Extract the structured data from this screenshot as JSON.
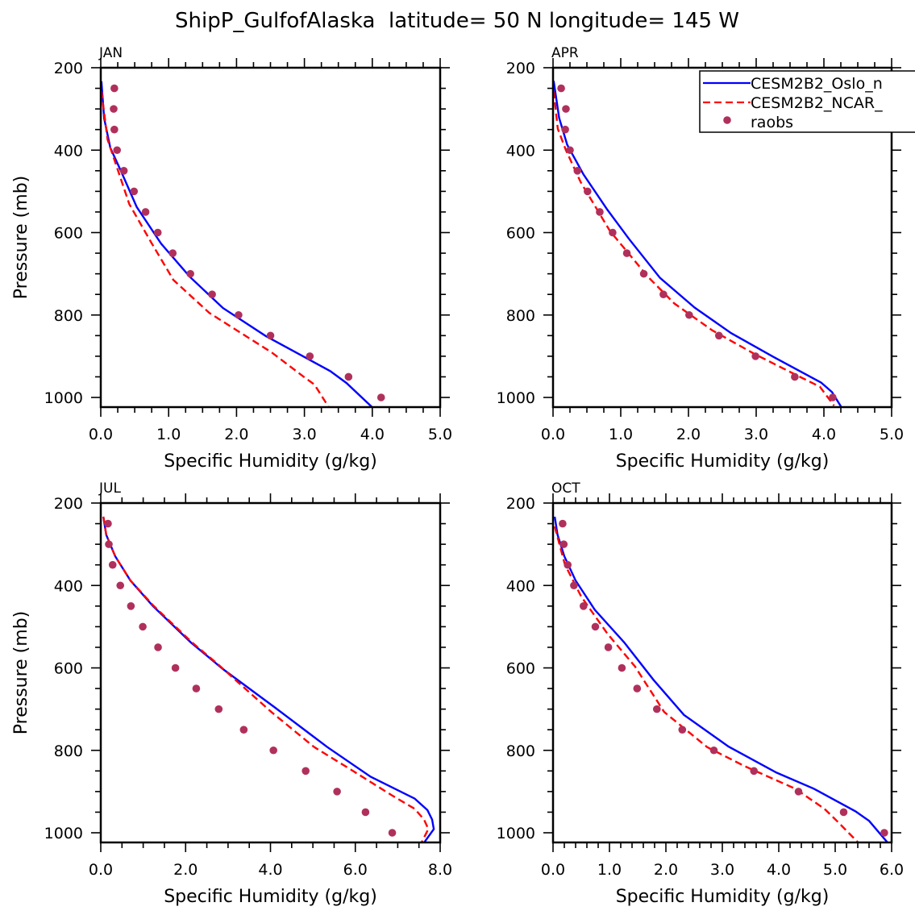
{
  "chart_data": {
    "type": "line",
    "title": "ShipP_GulfofAlaska  latitude= 50 N longitude= 145 W",
    "legend": {
      "placement": "top-right",
      "entries": [
        {
          "label": "CESM2B2_Oslo_n",
          "style": "solid",
          "color": "#0000ff"
        },
        {
          "label": "CESM2B2_NCAR_",
          "style": "dashed",
          "color": "#ff0000"
        },
        {
          "label": "raobs",
          "style": "marker",
          "color": "#b0305c"
        }
      ]
    },
    "panels": [
      {
        "label": "JAN",
        "xlabel": "Specific Humidity (g/kg)",
        "ylabel": "Pressure (mb)",
        "xlim": [
          0,
          5
        ],
        "ylim": [
          200,
          1025
        ],
        "xticks": [
          "0.0",
          "1.0",
          "2.0",
          "3.0",
          "4.0",
          "5.0"
        ],
        "xmajor": 1,
        "xminor": 0.25,
        "yticks": [
          "200",
          "400",
          "600",
          "800",
          "1000"
        ],
        "series": [
          {
            "name": "CESM2B2_Oslo_n",
            "p": [
              233,
              323,
              394,
              452,
              538,
              627,
              707,
              783,
              851,
              936,
              965,
              1024
            ],
            "q": [
              0.01,
              0.05,
              0.14,
              0.3,
              0.53,
              0.89,
              1.31,
              1.8,
              2.43,
              3.38,
              3.62,
              4.0
            ]
          },
          {
            "name": "CESM2B2_NCAR_",
            "p": [
              257,
              374,
              531,
              623,
              715,
              795,
              891,
              950,
              969,
              1024
            ],
            "q": [
              0.01,
              0.1,
              0.42,
              0.74,
              1.07,
              1.6,
              2.52,
              2.99,
              3.15,
              3.36
            ]
          },
          {
            "name": "raobs",
            "p": [
              250,
              300,
              350,
              400,
              450,
              500,
              550,
              600,
              650,
              700,
              750,
              800,
              850,
              900,
              950,
              1000
            ],
            "q": [
              0.2,
              0.19,
              0.2,
              0.24,
              0.34,
              0.49,
              0.66,
              0.84,
              1.06,
              1.32,
              1.64,
              2.03,
              2.5,
              3.08,
              3.65,
              4.13
            ]
          }
        ]
      },
      {
        "label": "APR",
        "xlabel": "Specific Humidity (g/kg)",
        "ylabel": "",
        "xlim": [
          0,
          5
        ],
        "ylim": [
          200,
          1025
        ],
        "xticks": [
          "0.0",
          "1.0",
          "2.0",
          "3.0",
          "4.0",
          "5.0"
        ],
        "xmajor": 1,
        "xminor": 0.25,
        "yticks": [
          "200",
          "400",
          "600",
          "800",
          "1000"
        ],
        "series": [
          {
            "name": "CESM2B2_Oslo_n",
            "p": [
              232,
              322,
              387,
              459,
              544,
              615,
              710,
              782,
              844,
              902,
              964,
              987,
              1024
            ],
            "q": [
              0.01,
              0.09,
              0.21,
              0.45,
              0.8,
              1.12,
              1.58,
              2.09,
              2.63,
              3.26,
              3.96,
              4.12,
              4.26
            ]
          },
          {
            "name": "CESM2B2_NCAR_",
            "p": [
              257,
              348,
              400,
              478,
              596,
              707,
              772,
              837,
              895,
              948,
              974,
              1020
            ],
            "q": [
              0.01,
              0.07,
              0.19,
              0.41,
              0.84,
              1.4,
              1.79,
              2.35,
              2.98,
              3.62,
              3.94,
              4.15
            ]
          },
          {
            "name": "raobs",
            "p": [
              250,
              300,
              350,
              400,
              450,
              500,
              550,
              600,
              650,
              700,
              750,
              800,
              850,
              900,
              950,
              1000
            ],
            "q": [
              0.12,
              0.19,
              0.18,
              0.25,
              0.36,
              0.51,
              0.69,
              0.88,
              1.09,
              1.34,
              1.63,
              2.01,
              2.45,
              2.99,
              3.57,
              4.13
            ]
          }
        ]
      },
      {
        "label": "JUL",
        "xlabel": "Specific Humidity (g/kg)",
        "ylabel": "Pressure (mb)",
        "xlim": [
          0,
          8
        ],
        "ylim": [
          200,
          1025
        ],
        "xticks": [
          "0.0",
          "2.0",
          "4.0",
          "6.0",
          "8.0"
        ],
        "xmajor": 2,
        "xminor": 0.5,
        "yticks": [
          "200",
          "400",
          "600",
          "800",
          "1000"
        ],
        "series": [
          {
            "name": "CESM2B2_Oslo_n",
            "p": [
              233,
              277,
              329,
              388,
              450,
              538,
              603,
              694,
              792,
              864,
              917,
              945,
              968,
              991,
              1024
            ],
            "q": [
              0.06,
              0.13,
              0.34,
              0.7,
              1.23,
              2.12,
              2.88,
              4.08,
              5.34,
              6.36,
              7.4,
              7.7,
              7.81,
              7.85,
              7.62
            ]
          },
          {
            "name": "CESM2B2_NCAR_",
            "p": [
              233,
              277,
              329,
              388,
              450,
              538,
              590,
              707,
              792,
              844,
              909,
              942,
              968,
              991,
              1024
            ],
            "q": [
              0.06,
              0.13,
              0.34,
              0.7,
              1.25,
              2.15,
              2.75,
              4.02,
              5.03,
              5.85,
              6.86,
              7.4,
              7.62,
              7.72,
              7.56
            ]
          },
          {
            "name": "raobs",
            "p": [
              250,
              300,
              350,
              400,
              450,
              500,
              550,
              600,
              650,
              700,
              750,
              800,
              850,
              900,
              950,
              1000
            ],
            "q": [
              0.17,
              0.19,
              0.28,
              0.46,
              0.71,
              0.99,
              1.35,
              1.76,
              2.25,
              2.78,
              3.37,
              4.07,
              4.83,
              5.57,
              6.24,
              6.87
            ]
          }
        ]
      },
      {
        "label": "OCT",
        "xlabel": "Specific Humidity (g/kg)",
        "ylabel": "",
        "xlim": [
          0,
          6
        ],
        "ylim": [
          200,
          1025
        ],
        "xticks": [
          "0.0",
          "1.0",
          "2.0",
          "3.0",
          "4.0",
          "5.0",
          "6.0"
        ],
        "xmajor": 1,
        "xminor": 0.2,
        "yticks": [
          "200",
          "400",
          "600",
          "800",
          "1000"
        ],
        "series": [
          {
            "name": "CESM2B2_Oslo_n",
            "p": [
              233,
              277,
              329,
              388,
              459,
              538,
              629,
              714,
              791,
              854,
              893,
              948,
              971,
              1024
            ],
            "q": [
              0.03,
              0.08,
              0.2,
              0.4,
              0.74,
              1.26,
              1.78,
              2.32,
              3.11,
              3.96,
              4.62,
              5.36,
              5.6,
              5.93
            ]
          },
          {
            "name": "CESM2B2_NCAR_",
            "p": [
              257,
              349,
              427,
              518,
              596,
              707,
              792,
              838,
              893,
              942,
              974,
              1024
            ],
            "q": [
              0.03,
              0.21,
              0.5,
              0.97,
              1.45,
              1.97,
              2.73,
              3.39,
              4.29,
              4.81,
              5.05,
              5.41
            ]
          },
          {
            "name": "raobs",
            "p": [
              250,
              300,
              350,
              400,
              450,
              500,
              550,
              600,
              650,
              700,
              750,
              800,
              850,
              900,
              950,
              1000
            ],
            "q": [
              0.17,
              0.19,
              0.26,
              0.37,
              0.54,
              0.75,
              0.98,
              1.22,
              1.49,
              1.84,
              2.29,
              2.85,
              3.56,
              4.35,
              5.15,
              5.87
            ]
          }
        ]
      }
    ]
  }
}
